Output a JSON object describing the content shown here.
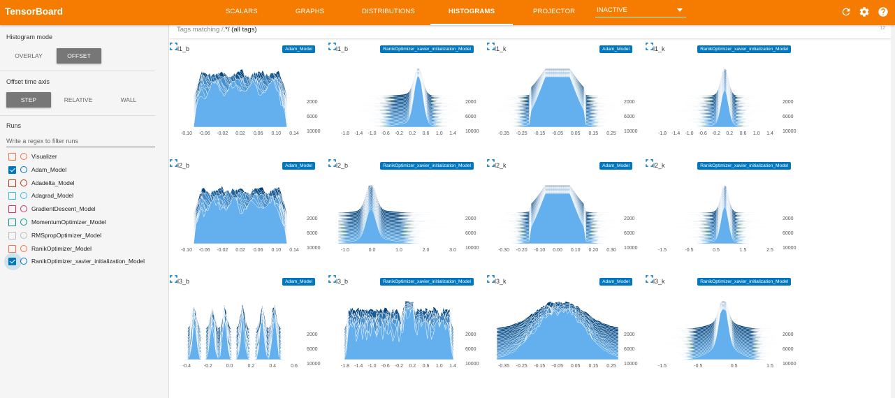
{
  "app": {
    "title": "TensorBoard",
    "tabs": [
      {
        "label": "SCALARS",
        "active": false
      },
      {
        "label": "GRAPHS",
        "active": false
      },
      {
        "label": "DISTRIBUTIONS",
        "active": false
      },
      {
        "label": "HISTOGRAMS",
        "active": true
      },
      {
        "label": "PROJECTOR",
        "active": false
      }
    ],
    "status_select": "INACTIVE",
    "icons": [
      "refresh-icon",
      "settings-icon",
      "help-icon"
    ],
    "accent_color": "#f57c00"
  },
  "sidebar": {
    "histogram_mode": {
      "label": "Histogram mode",
      "options": [
        "OVERLAY",
        "OFFSET"
      ],
      "selected": "OFFSET"
    },
    "offset_axis": {
      "label": "Offset time axis",
      "options": [
        "STEP",
        "RELATIVE",
        "WALL"
      ],
      "selected": "STEP"
    },
    "runs": {
      "label": "Runs",
      "filter_placeholder": "Write a regex to filter runs",
      "items": [
        {
          "name": "Visualizer",
          "checked": false,
          "color": "#ff7043"
        },
        {
          "name": "Adam_Model",
          "checked": true,
          "color": "#0277bd"
        },
        {
          "name": "Adadelta_Model",
          "checked": false,
          "color": "#bf360c"
        },
        {
          "name": "Adagrad_Model",
          "checked": false,
          "color": "#33bbee"
        },
        {
          "name": "GradientDescent_Model",
          "checked": false,
          "color": "#cc3366"
        },
        {
          "name": "MomentumOptimizer_Model",
          "checked": false,
          "color": "#009988"
        },
        {
          "name": "RMSpropOptimizer_Model",
          "checked": false,
          "color": "#bbbbbb"
        },
        {
          "name": "RanikOptimizer_Model",
          "checked": false,
          "color": "#ff7043"
        },
        {
          "name": "RanikOptimizer_xavier_initialization_Model",
          "checked": true,
          "color": "#0277bd"
        }
      ]
    }
  },
  "main": {
    "tag_filter": {
      "prefix": "Tags matching /",
      "regex": ".*",
      "suffix": "/ (all tags)",
      "count": "12"
    },
    "histograms": [
      {
        "tag": "l1_b",
        "run": "Adam_Model",
        "y_ticks": [
          "2000",
          "6000",
          "10000"
        ],
        "x_ticks": [
          "-0.10",
          "-0.06",
          "-0.02",
          "0.02",
          "0.06",
          "0.10",
          "0.14"
        ],
        "shape": "plateau"
      },
      {
        "tag": "l1_b",
        "run": "RanikOptimizer_xavier_initialization_Model",
        "y_ticks": [
          "2000",
          "6000",
          "10000"
        ],
        "x_ticks": [
          "-1.8",
          "-1.4",
          "-1.0",
          "-0.6",
          "-0.2",
          "0.2",
          "0.6",
          "1.0",
          "1.4"
        ],
        "shape": "spike"
      },
      {
        "tag": "l1_k",
        "run": "Adam_Model",
        "y_ticks": [
          "2000",
          "6000",
          "10000"
        ],
        "x_ticks": [
          "-0.35",
          "-0.25",
          "-0.15",
          "-0.05",
          "0.05",
          "0.15",
          "0.25"
        ],
        "shape": "bell"
      },
      {
        "tag": "l1_k",
        "run": "RanikOptimizer_xavier_initialization_Model",
        "y_ticks": [
          "2000",
          "6000",
          "10000"
        ],
        "x_ticks": [
          "-1.8",
          "-1.4",
          "-1.0",
          "-0.6",
          "-0.2",
          "0.2",
          "0.6",
          "1.0",
          "1.4"
        ],
        "shape": "narrow-spike"
      },
      {
        "tag": "l2_b",
        "run": "Adam_Model",
        "y_ticks": [
          "2000",
          "6000",
          "10000"
        ],
        "x_ticks": [
          "-0.10",
          "-0.06",
          "-0.02",
          "0.02",
          "0.06",
          "0.10",
          "0.14"
        ],
        "shape": "plateau"
      },
      {
        "tag": "l2_b",
        "run": "RanikOptimizer_xavier_initialization_Model",
        "y_ticks": [
          "2000",
          "6000",
          "10000"
        ],
        "x_ticks": [
          "-1.0",
          "0.0",
          "1.0",
          "2.0",
          "3.0"
        ],
        "shape": "left-spike"
      },
      {
        "tag": "l2_k",
        "run": "Adam_Model",
        "y_ticks": [
          "2000",
          "6000",
          "10000"
        ],
        "x_ticks": [
          "-0.30",
          "-0.20",
          "-0.10",
          "0.00",
          "0.10",
          "0.20",
          "0.30"
        ],
        "shape": "bell"
      },
      {
        "tag": "l2_k",
        "run": "RanikOptimizer_xavier_initialization_Model",
        "y_ticks": [
          "2000",
          "6000",
          "10000"
        ],
        "x_ticks": [
          "-1.5",
          "-0.5",
          "0.5",
          "1.5",
          "2.5"
        ],
        "shape": "narrow-spike"
      },
      {
        "tag": "l3_b",
        "run": "Adam_Model",
        "y_ticks": [
          "2000",
          "6000",
          "10000"
        ],
        "x_ticks": [
          "-0.4",
          "-0.2",
          "0.0",
          "0.2",
          "0.4",
          "0.6"
        ],
        "shape": "spikes"
      },
      {
        "tag": "l3_b",
        "run": "RanikOptimizer_xavier_initialization_Model",
        "y_ticks": [
          "2000",
          "6000",
          "10000"
        ],
        "x_ticks": [
          "-1.8",
          "-1.4",
          "-1.0",
          "-0.6",
          "-0.2",
          "0.2",
          "0.6",
          "1.0",
          "1.4"
        ],
        "shape": "jagged"
      },
      {
        "tag": "l3_k",
        "run": "Adam_Model",
        "y_ticks": [
          "2000",
          "6000",
          "10000"
        ],
        "x_ticks": [
          "-0.35",
          "-0.25",
          "-0.15",
          "-0.05",
          "0.05",
          "0.15",
          "0.25"
        ],
        "shape": "wide-bell"
      },
      {
        "tag": "l3_k",
        "run": "RanikOptimizer_xavier_initialization_Model",
        "y_ticks": [
          "2000",
          "6000",
          "10000"
        ],
        "x_ticks": [
          "-1.5",
          "-0.5",
          "0.5",
          "1.5"
        ],
        "shape": "center-spike"
      }
    ]
  }
}
